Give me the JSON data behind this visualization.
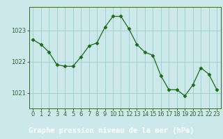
{
  "x": [
    0,
    1,
    2,
    3,
    4,
    5,
    6,
    7,
    8,
    9,
    10,
    11,
    12,
    13,
    14,
    15,
    16,
    17,
    18,
    19,
    20,
    21,
    22,
    23
  ],
  "y": [
    1022.7,
    1022.55,
    1022.3,
    1021.9,
    1021.85,
    1021.85,
    1022.15,
    1022.5,
    1022.6,
    1023.1,
    1023.45,
    1023.45,
    1023.05,
    1022.55,
    1022.3,
    1022.2,
    1021.55,
    1021.1,
    1021.1,
    1020.9,
    1021.25,
    1021.8,
    1021.6,
    1021.1
  ],
  "line_color": "#1a6b1a",
  "marker": "D",
  "marker_size": 2.5,
  "bg_color": "#cce8ea",
  "label_bg_color": "#cce8ea",
  "bottom_bg_color": "#005500",
  "grid_color": "#99cccc",
  "axis_color": "#336633",
  "xlabel": "Graphe pression niveau de la mer (hPa)",
  "xlabel_fontsize": 7.5,
  "xlim": [
    -0.5,
    23.5
  ],
  "ylim": [
    1020.5,
    1023.75
  ],
  "yticks": [
    1021,
    1022,
    1023
  ],
  "xtick_labels": [
    "0",
    "1",
    "2",
    "3",
    "4",
    "5",
    "6",
    "7",
    "8",
    "9",
    "10",
    "11",
    "12",
    "13",
    "14",
    "15",
    "16",
    "17",
    "18",
    "19",
    "20",
    "21",
    "22",
    "23"
  ],
  "tick_fontsize": 6,
  "ylabel_color": "#336633",
  "xlabel_color": "#ffffff",
  "tick_color": "#336633"
}
